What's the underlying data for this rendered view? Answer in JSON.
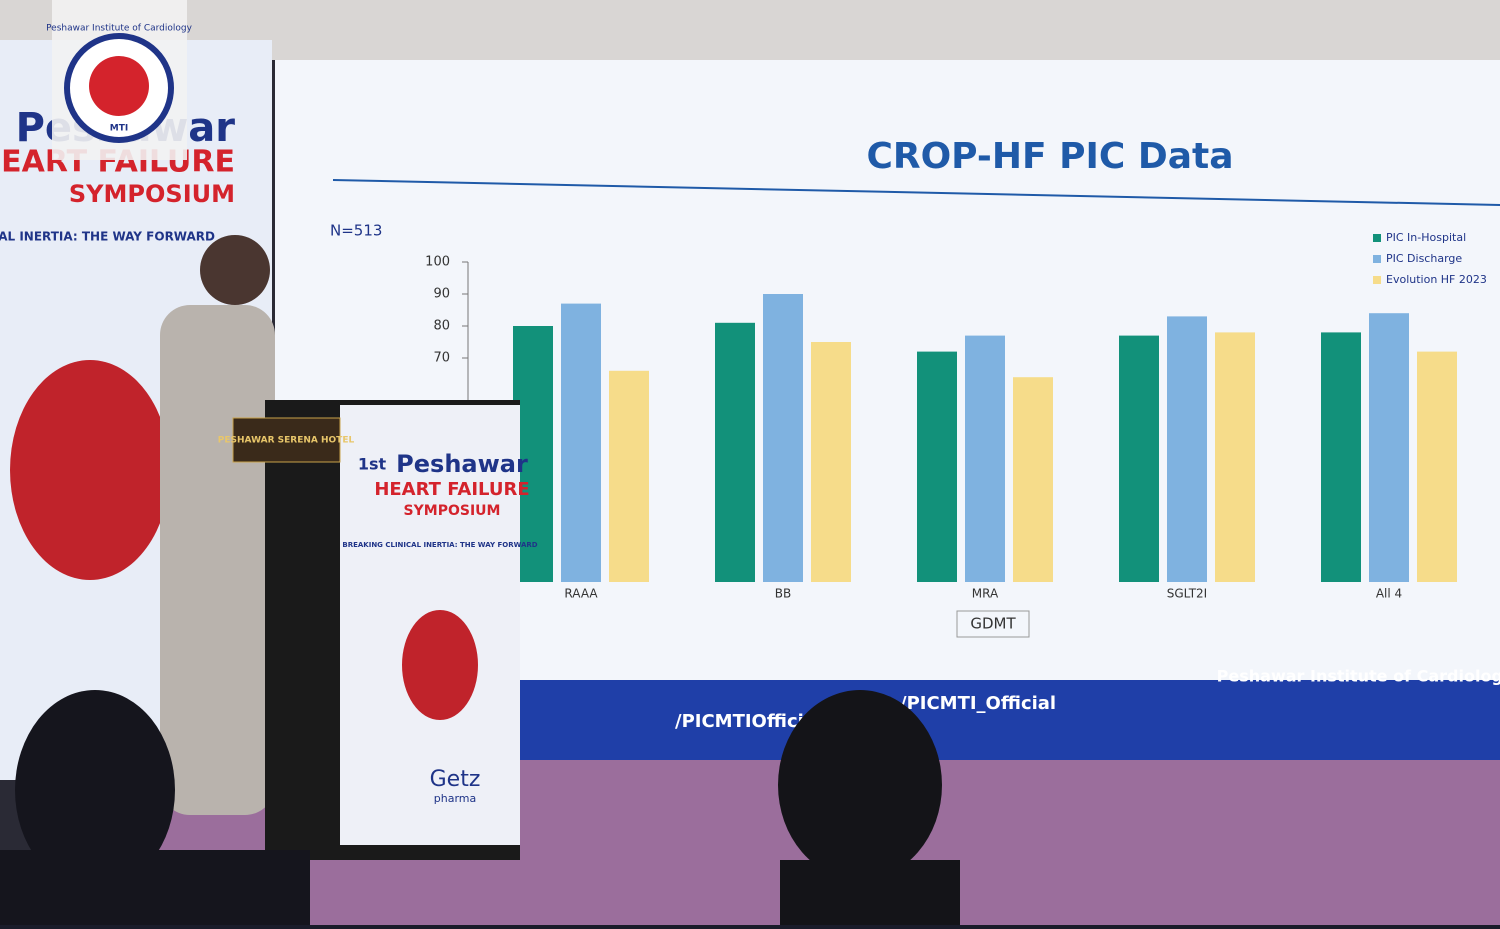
{
  "logo": {
    "name": "Peshawar Institute of Cardiology",
    "badge": "MTI"
  },
  "banner": {
    "ordinal": "1st",
    "line1": "Peshawar",
    "line2": "HEART FAILURE",
    "line3": "SYMPOSIUM",
    "tagline": "BREAKING CLINICAL INERTIA: THE WAY FORWARD"
  },
  "podium": {
    "hotel": "PESHAWAR SERENA HOTEL",
    "sponsor": "Getz",
    "sponsor_sub": "pharma"
  },
  "footer": {
    "facebook": "/PICMTIOfficial",
    "twitter": "/PICMTI_Official",
    "institute": "Peshawar Institute of Cardiology"
  },
  "chart_data": {
    "type": "bar",
    "title": "CROP-HF PIC Data",
    "note": "N=513",
    "x_label": "GDMT",
    "categories": [
      "RAAA",
      "BB",
      "MRA",
      "SGLT2I",
      "All 4"
    ],
    "series": [
      {
        "name": "PIC In-Hospital",
        "color": "#12917a",
        "values": [
          80,
          81,
          72,
          77,
          78
        ]
      },
      {
        "name": "PIC Discharge",
        "color": "#7fb2e0",
        "values": [
          87,
          90,
          77,
          83,
          84
        ]
      },
      {
        "name": "Evolution HF 2023",
        "color": "#f6dc8a",
        "values": [
          66,
          75,
          64,
          78,
          72
        ]
      }
    ],
    "ylim": [
      0,
      100
    ],
    "yticks": [
      70,
      80,
      90,
      100
    ]
  }
}
